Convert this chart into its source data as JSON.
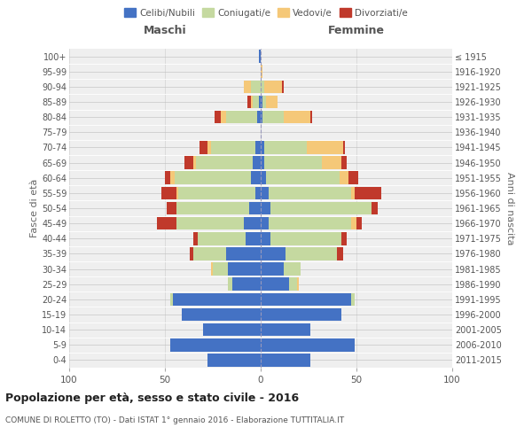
{
  "age_groups": [
    "0-4",
    "5-9",
    "10-14",
    "15-19",
    "20-24",
    "25-29",
    "30-34",
    "35-39",
    "40-44",
    "45-49",
    "50-54",
    "55-59",
    "60-64",
    "65-69",
    "70-74",
    "75-79",
    "80-84",
    "85-89",
    "90-94",
    "95-99",
    "100+"
  ],
  "birth_years": [
    "2011-2015",
    "2006-2010",
    "2001-2005",
    "1996-2000",
    "1991-1995",
    "1986-1990",
    "1981-1985",
    "1976-1980",
    "1971-1975",
    "1966-1970",
    "1961-1965",
    "1956-1960",
    "1951-1955",
    "1946-1950",
    "1941-1945",
    "1936-1940",
    "1931-1935",
    "1926-1930",
    "1921-1925",
    "1916-1920",
    "≤ 1915"
  ],
  "maschi": {
    "celibi": [
      28,
      47,
      30,
      41,
      46,
      15,
      17,
      18,
      8,
      9,
      6,
      3,
      5,
      4,
      3,
      0,
      2,
      1,
      0,
      0,
      1
    ],
    "coniugati": [
      0,
      0,
      0,
      0,
      1,
      2,
      8,
      17,
      25,
      35,
      38,
      40,
      40,
      30,
      23,
      0,
      16,
      3,
      5,
      0,
      0
    ],
    "vedovi": [
      0,
      0,
      0,
      0,
      0,
      0,
      1,
      0,
      0,
      0,
      0,
      1,
      2,
      1,
      2,
      0,
      3,
      1,
      4,
      0,
      0
    ],
    "divorziati": [
      0,
      0,
      0,
      0,
      0,
      0,
      0,
      2,
      2,
      10,
      5,
      8,
      3,
      5,
      4,
      0,
      3,
      2,
      0,
      0,
      0
    ]
  },
  "femmine": {
    "nubili": [
      26,
      49,
      26,
      42,
      47,
      15,
      12,
      13,
      5,
      4,
      5,
      4,
      3,
      2,
      2,
      0,
      1,
      1,
      0,
      0,
      0
    ],
    "coniugate": [
      0,
      0,
      0,
      0,
      2,
      4,
      9,
      27,
      37,
      43,
      53,
      43,
      38,
      30,
      22,
      0,
      11,
      2,
      2,
      0,
      0
    ],
    "vedove": [
      0,
      0,
      0,
      0,
      0,
      1,
      0,
      0,
      0,
      3,
      0,
      2,
      5,
      10,
      19,
      0,
      14,
      6,
      9,
      1,
      0
    ],
    "divorziate": [
      0,
      0,
      0,
      0,
      0,
      0,
      0,
      3,
      3,
      3,
      3,
      14,
      5,
      3,
      1,
      0,
      1,
      0,
      1,
      0,
      0
    ]
  },
  "colors": {
    "celibi": "#4472c4",
    "coniugati": "#c5d9a0",
    "vedovi": "#f5c878",
    "divorziati": "#c0392b"
  },
  "xlim": 100,
  "title": "Popolazione per età, sesso e stato civile - 2016",
  "subtitle": "COMUNE DI ROLETTO (TO) - Dati ISTAT 1° gennaio 2016 - Elaborazione TUTTITALIA.IT",
  "xlabel_left": "Maschi",
  "xlabel_right": "Femmine",
  "ylabel_left": "Fasce di età",
  "ylabel_right": "Anni di nascita",
  "legend_labels": [
    "Celibi/Nubili",
    "Coniugati/e",
    "Vedovi/e",
    "Divorziati/e"
  ],
  "bg_color": "#efefef",
  "grid_color": "#cccccc"
}
